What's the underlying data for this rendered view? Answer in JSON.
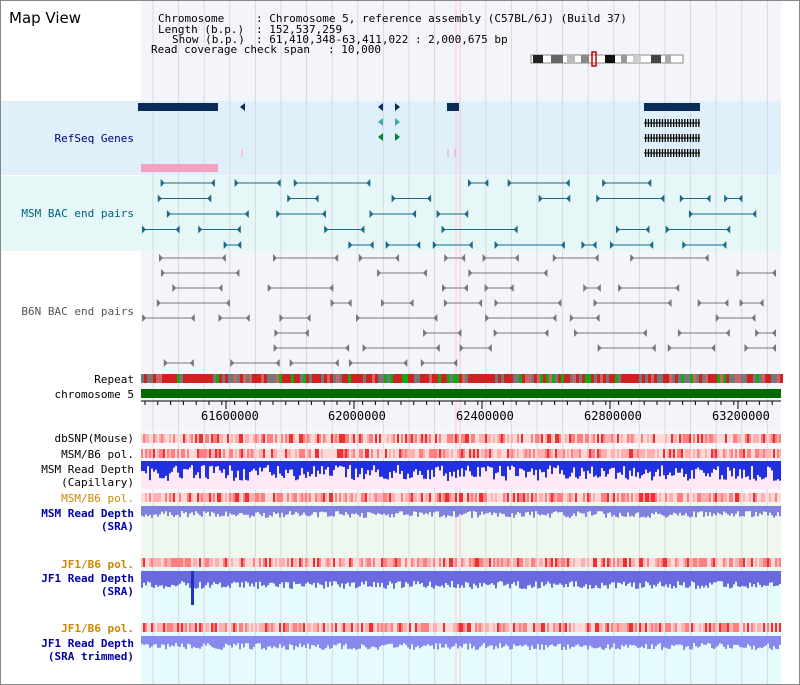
{
  "window": {
    "title": "Map View"
  },
  "header": {
    "chromosome_label": "Chromosome",
    "chromosome_value": ": Chromosome 5, reference assembly (C57BL/6J) (Build 37)",
    "length_label": "Length (b.p.)",
    "length_value": ": 152,537,259",
    "show_label": "Show (b.p.)",
    "show_value": ": 61,410,348-63,411,022 : 2,000,675 bp",
    "coverage_label": "Read coverage check span",
    "coverage_value": ": 10,000"
  },
  "tracks": {
    "refseq": {
      "label": "RefSeq Genes",
      "color": "#000080"
    },
    "msm_bac": {
      "label": "MSM BAC end pairs",
      "color": "#006080"
    },
    "b6n_bac": {
      "label": "B6N BAC end pairs",
      "color": "#555555"
    },
    "repeat": {
      "label": "Repeat"
    },
    "chromosome": {
      "label": "chromosome 5"
    },
    "dbsnp": {
      "label": "dbSNP(Mouse)"
    },
    "msm_b6_pol_1": {
      "label": "MSM/B6 pol."
    },
    "msm_read_depth_cap": {
      "label1": "MSM Read Depth",
      "label2": "(Capillary)"
    },
    "msm_b6_pol_2": {
      "label": "MSM/B6 pol.",
      "color": "#cc8800"
    },
    "msm_read_depth_sra": {
      "label1": "MSM Read Depth",
      "label2": "(SRA)",
      "color": "#0000aa"
    },
    "jf1_b6_pol_1": {
      "label": "JF1/B6 pol.",
      "color": "#cc8800"
    },
    "jf1_read_depth_sra": {
      "label1": "JF1 Read Depth",
      "label2": "(SRA)",
      "color": "#0000aa"
    },
    "jf1_b6_pol_2": {
      "label": "JF1/B6 pol.",
      "color": "#cc8800"
    },
    "jf1_read_depth_trim": {
      "label1": "JF1 Read Depth",
      "label2": "(SRA trimmed)",
      "color": "#0000aa"
    }
  },
  "axis": {
    "ticks": [
      "61600000",
      "62000000",
      "62400000",
      "62800000",
      "63200000"
    ]
  }
}
